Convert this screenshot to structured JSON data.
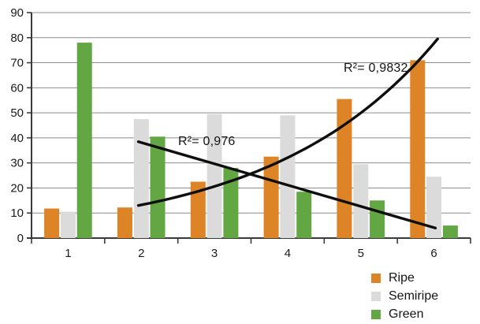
{
  "chart_data": {
    "type": "bar",
    "title": "",
    "xlabel": "",
    "ylabel": "",
    "categories": [
      "1",
      "2",
      "3",
      "4",
      "5",
      "6"
    ],
    "series": [
      {
        "name": "Ripe",
        "color": "#DD8427",
        "values": [
          11.8,
          12.2,
          22.5,
          32.5,
          55.5,
          71
        ]
      },
      {
        "name": "Semiripe",
        "color": "#DBDBDB",
        "values": [
          10.5,
          47.5,
          49.5,
          49,
          29.5,
          24.5
        ]
      },
      {
        "name": "Green",
        "color": "#63A644",
        "values": [
          78,
          40.5,
          28,
          18.5,
          15,
          5
        ]
      }
    ],
    "ylim": [
      0,
      90
    ],
    "ytick_step": 10,
    "grid": "horizontal",
    "legend_position": "bottom-right",
    "trendlines": [
      {
        "series": "Ripe",
        "shape": "exponential",
        "label": "R²= 0,9832",
        "t_range": [
          1.96,
          6.05
        ],
        "v_start": 13,
        "v_end": 79.5
      },
      {
        "series": "Green",
        "shape": "linear",
        "label": "R²= 0,976",
        "t_range": [
          1.96,
          6.02
        ],
        "v_start": 38.5,
        "v_end": 4
      }
    ]
  },
  "colors": {
    "grid": "#8C8C8C",
    "axis": "#3A3A3A",
    "trendline": "#0E0E0E",
    "text": "#1a1a1a"
  }
}
